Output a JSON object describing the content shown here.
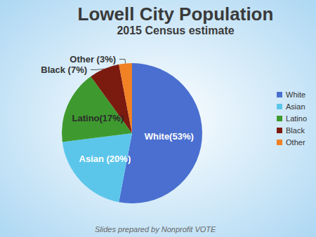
{
  "chart_data": {
    "type": "pie",
    "title": "Lowell City Population",
    "subtitle": "2015 Census estimate",
    "annotations": [
      "Slides prepared by Nonprofit VOTE"
    ],
    "categories": [
      "White",
      "Asian",
      "Latino",
      "Black",
      "Other"
    ],
    "values": [
      53,
      20,
      17,
      7,
      3
    ],
    "value_labels": [
      "White(53%)",
      "Asian (20%)",
      "Latino(17%)",
      "Black (7%)",
      "Other (3%)"
    ],
    "colors": [
      "#4a6fd0",
      "#5cc6ea",
      "#3e9a2f",
      "#7b1a0f",
      "#f08125"
    ],
    "data_labels": true,
    "legend": "right"
  }
}
